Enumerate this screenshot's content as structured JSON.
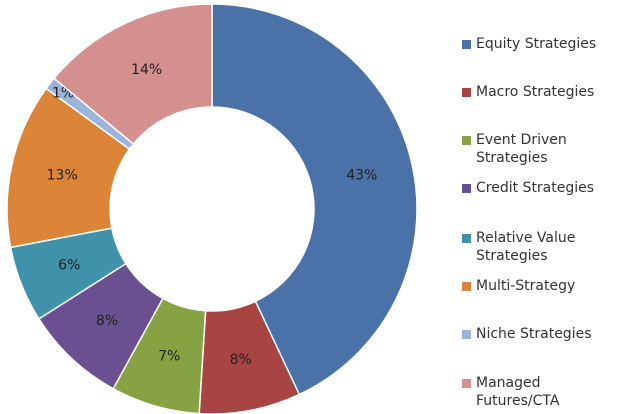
{
  "chart_data": {
    "type": "donut",
    "categories": [
      "Equity Strategies",
      "Macro Strategies",
      "Event Driven Strategies",
      "Credit Strategies",
      "Relative Value Strategies",
      "Multi-Strategy",
      "Niche Strategies",
      "Managed Futures/CTA"
    ],
    "values": [
      43,
      8,
      7,
      8,
      6,
      13,
      1,
      14
    ],
    "value_labels": [
      "43%",
      "8%",
      "7%",
      "8%",
      "6%",
      "13%",
      "1%",
      "14%"
    ],
    "colors": [
      "#4a72a8",
      "#a84442",
      "#87a243",
      "#6b5091",
      "#3f92a9",
      "#dc8539",
      "#9bb4d9",
      "#d4908f"
    ],
    "legend": "right"
  }
}
